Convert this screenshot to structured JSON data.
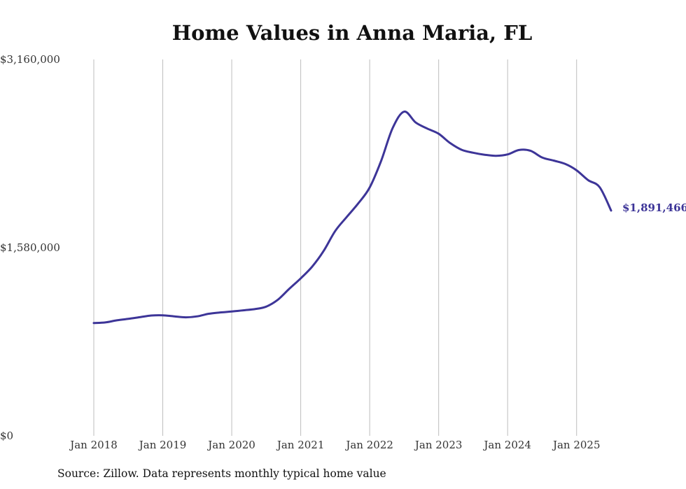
{
  "chart_data": {
    "type": "line",
    "title": "Home Values in Anna Maria, FL",
    "xlabel": "",
    "ylabel": "",
    "ylim": [
      0,
      3160000
    ],
    "y_tick_labels": [
      "$3,160,000",
      "$1,580,000",
      "$0"
    ],
    "y_ticks": [
      3160000,
      1580000,
      0
    ],
    "x_tick_labels": [
      "Jan 2018",
      "Jan 2019",
      "Jan 2020",
      "Jan 2021",
      "Jan 2022",
      "Jan 2023",
      "Jan 2024",
      "Jan 2025"
    ],
    "x_ticks": [
      "2018-01",
      "2019-01",
      "2020-01",
      "2021-01",
      "2022-01",
      "2023-01",
      "2024-01",
      "2025-01"
    ],
    "x_range": [
      "2018-01",
      "2025-07"
    ],
    "grid": "vertical",
    "line_color": "#3d3598",
    "end_label": "$1,891,466",
    "series": [
      {
        "points": [
          [
            "2018-01",
            947000
          ],
          [
            "2018-03",
            952000
          ],
          [
            "2018-05",
            970000
          ],
          [
            "2018-07",
            982000
          ],
          [
            "2018-09",
            996000
          ],
          [
            "2018-11",
            1010000
          ],
          [
            "2019-01",
            1012000
          ],
          [
            "2019-03",
            1003000
          ],
          [
            "2019-05",
            995000
          ],
          [
            "2019-07",
            1003000
          ],
          [
            "2019-09",
            1025000
          ],
          [
            "2019-11",
            1036000
          ],
          [
            "2020-01",
            1044000
          ],
          [
            "2020-03",
            1054000
          ],
          [
            "2020-05",
            1064000
          ],
          [
            "2020-07",
            1085000
          ],
          [
            "2020-09",
            1142000
          ],
          [
            "2020-11",
            1234000
          ],
          [
            "2021-01",
            1322000
          ],
          [
            "2021-03",
            1421000
          ],
          [
            "2021-05",
            1553000
          ],
          [
            "2021-07",
            1720000
          ],
          [
            "2021-09",
            1837000
          ],
          [
            "2021-11",
            1951000
          ],
          [
            "2022-01",
            2085000
          ],
          [
            "2022-03",
            2310000
          ],
          [
            "2022-05",
            2585000
          ],
          [
            "2022-07",
            2722000
          ],
          [
            "2022-09",
            2631000
          ],
          [
            "2022-11",
            2580000
          ],
          [
            "2023-01",
            2536000
          ],
          [
            "2023-03",
            2458000
          ],
          [
            "2023-05",
            2402000
          ],
          [
            "2023-07",
            2377000
          ],
          [
            "2023-09",
            2360000
          ],
          [
            "2023-11",
            2351000
          ],
          [
            "2024-01",
            2363000
          ],
          [
            "2024-03",
            2400000
          ],
          [
            "2024-05",
            2393000
          ],
          [
            "2024-07",
            2337000
          ],
          [
            "2024-09",
            2311000
          ],
          [
            "2024-11",
            2283000
          ],
          [
            "2025-01",
            2229000
          ],
          [
            "2025-03",
            2147000
          ],
          [
            "2025-05",
            2088000
          ],
          [
            "2025-07",
            1891466
          ]
        ]
      }
    ]
  },
  "source_text": "Source: Zillow. Data represents monthly typical home value"
}
